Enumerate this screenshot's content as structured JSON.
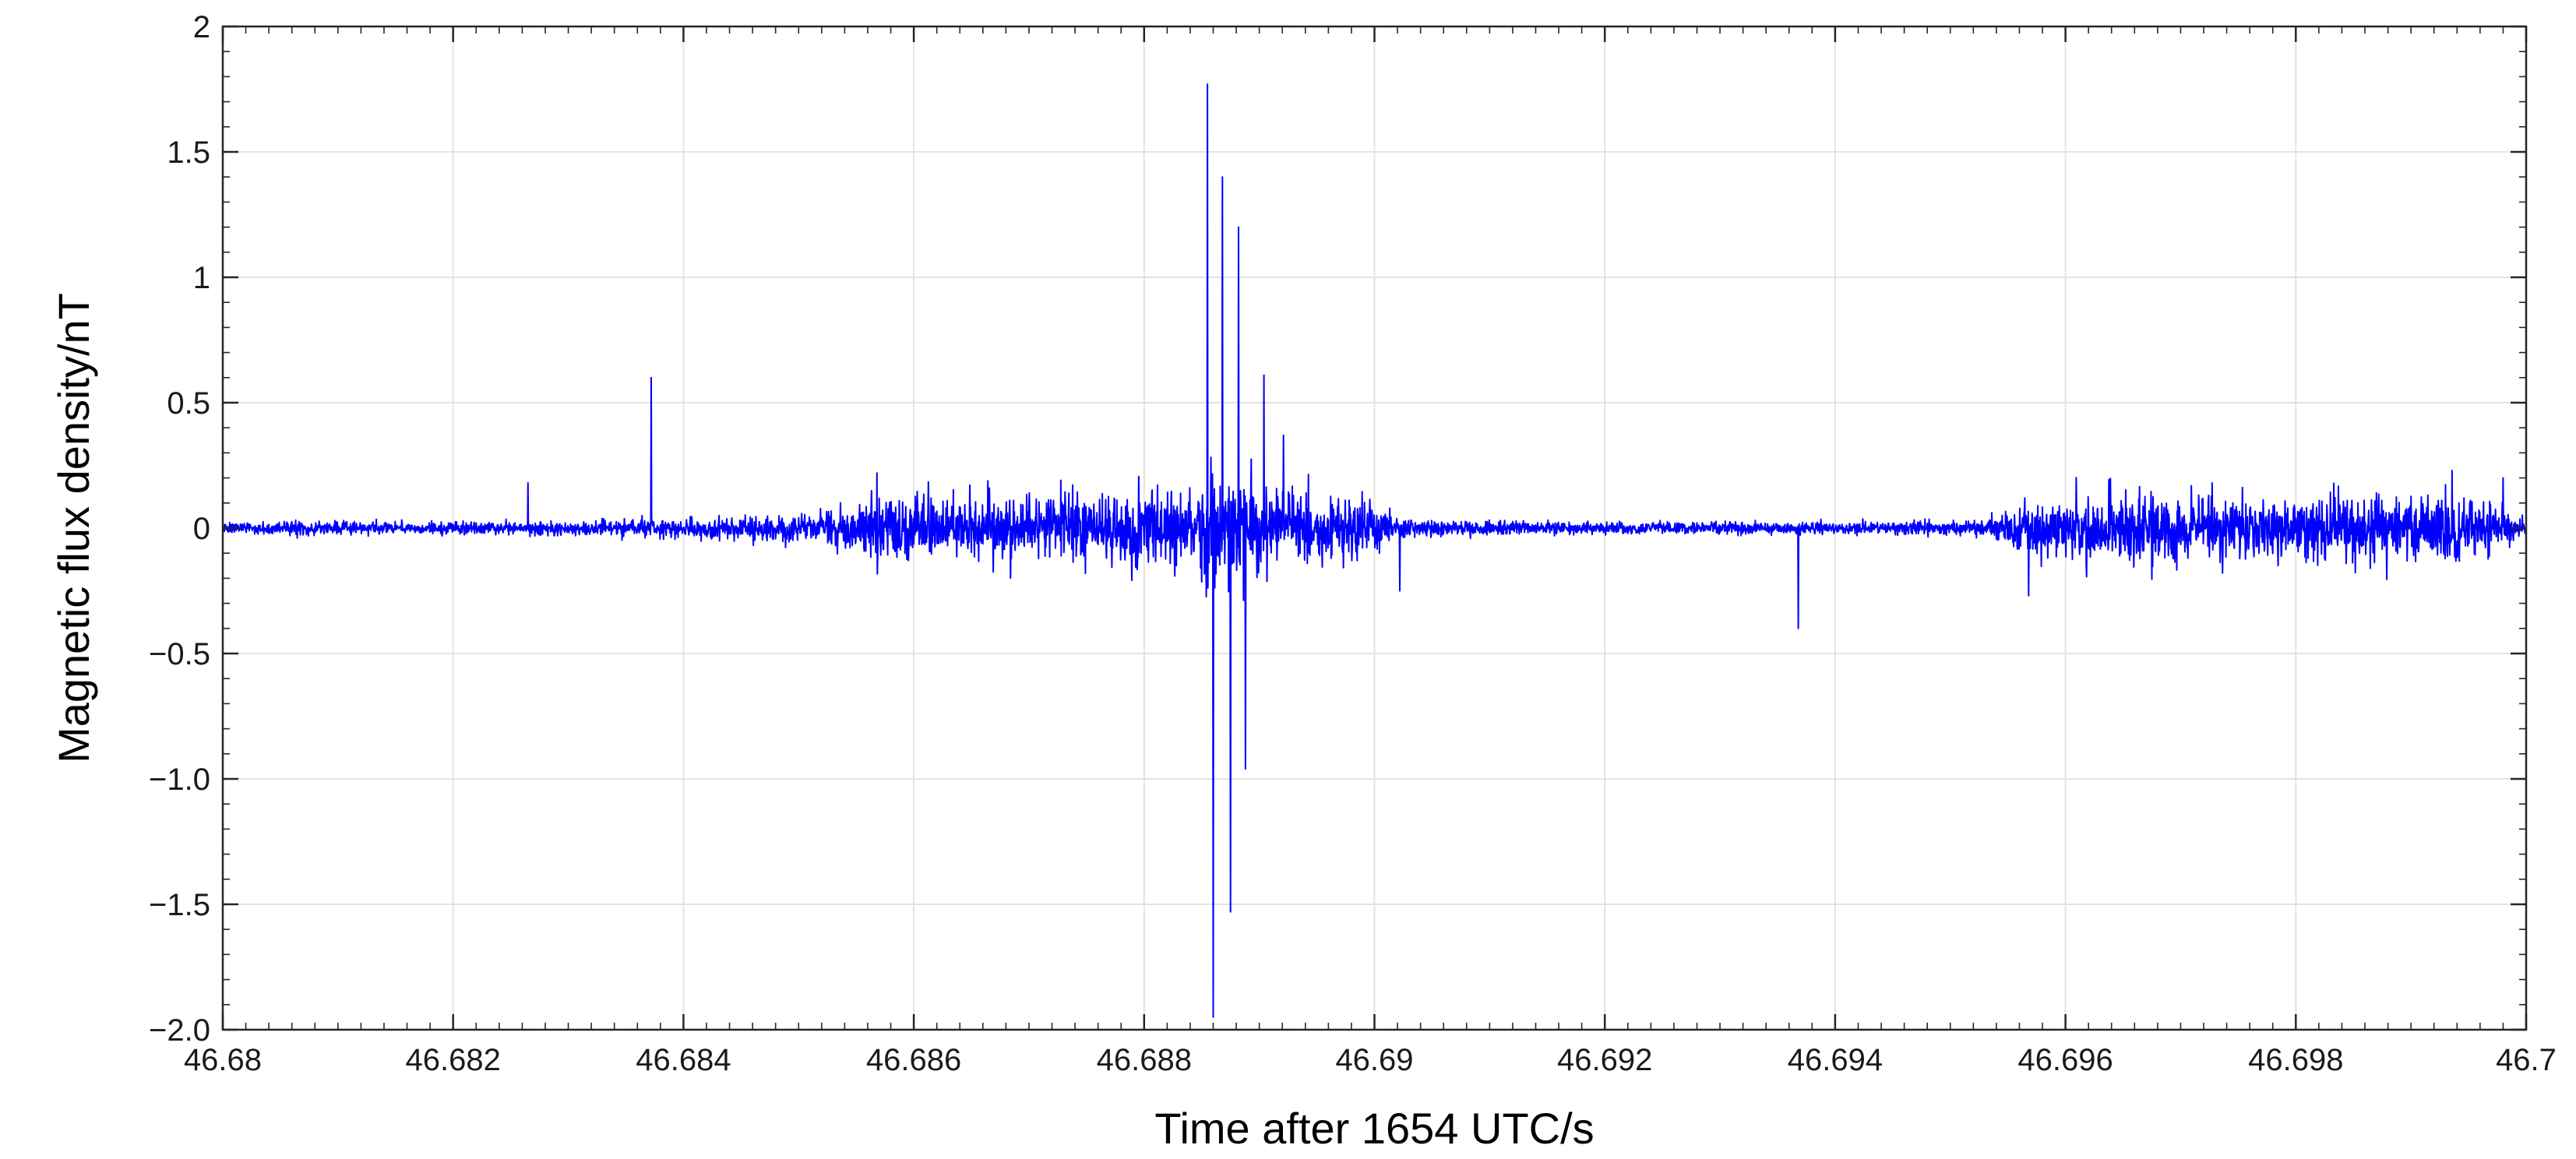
{
  "chart_data": {
    "type": "line",
    "xlabel": "Time after 1654 UTC/s",
    "ylabel": "Magnetic flux density/nT",
    "xlim": [
      46.68,
      46.7
    ],
    "ylim": [
      -2.0,
      2.0
    ],
    "x_ticks": [
      46.68,
      46.682,
      46.684,
      46.686,
      46.688,
      46.69,
      46.692,
      46.694,
      46.696,
      46.698,
      46.7
    ],
    "x_tick_labels": [
      "46.68",
      "46.682",
      "46.684",
      "46.686",
      "46.688",
      "46.69",
      "46.692",
      "46.694",
      "46.696",
      "46.698",
      "46.7"
    ],
    "y_ticks": [
      2,
      1.5,
      1,
      0.5,
      0,
      -0.5,
      -1.0,
      -1.5,
      -2.0
    ],
    "y_tick_labels": [
      "2",
      "1.5",
      "1",
      "0.5",
      "0",
      "−0.5",
      "−1.0",
      "−1.5",
      "−2.0"
    ],
    "grid": true,
    "line_color": "#0000ff",
    "series": [
      {
        "noise_envelope": {
          "x": [
            46.68,
            46.6825,
            46.684,
            46.6852,
            46.6857,
            46.6862,
            46.688,
            46.6884,
            46.6886,
            46.6893,
            46.6899,
            46.6902,
            46.692,
            46.694,
            46.6953,
            46.6957,
            46.6962,
            46.698,
            46.6995,
            46.7
          ],
          "amplitude": [
            0.02,
            0.02,
            0.03,
            0.05,
            0.12,
            0.1,
            0.12,
            0.14,
            0.2,
            0.12,
            0.1,
            0.03,
            0.02,
            0.02,
            0.03,
            0.09,
            0.1,
            0.11,
            0.11,
            0.03
          ]
        },
        "features": [
          {
            "x": 46.68265,
            "y": 0.18
          },
          {
            "x": 46.68372,
            "y": 0.6
          },
          {
            "x": 46.68568,
            "y": 0.22
          },
          {
            "x": 46.68855,
            "y": 1.77
          },
          {
            "x": 46.6886,
            "y": -1.95
          },
          {
            "x": 46.68868,
            "y": 1.4
          },
          {
            "x": 46.68875,
            "y": -1.53
          },
          {
            "x": 46.68882,
            "y": 1.2
          },
          {
            "x": 46.68888,
            "y": -0.96
          },
          {
            "x": 46.68904,
            "y": 0.61
          },
          {
            "x": 46.68921,
            "y": 0.37
          },
          {
            "x": 46.69022,
            "y": -0.25
          },
          {
            "x": 46.69368,
            "y": -0.4
          },
          {
            "x": 46.69568,
            "y": -0.27
          },
          {
            "x": 46.6998,
            "y": 0.2
          }
        ]
      }
    ]
  }
}
